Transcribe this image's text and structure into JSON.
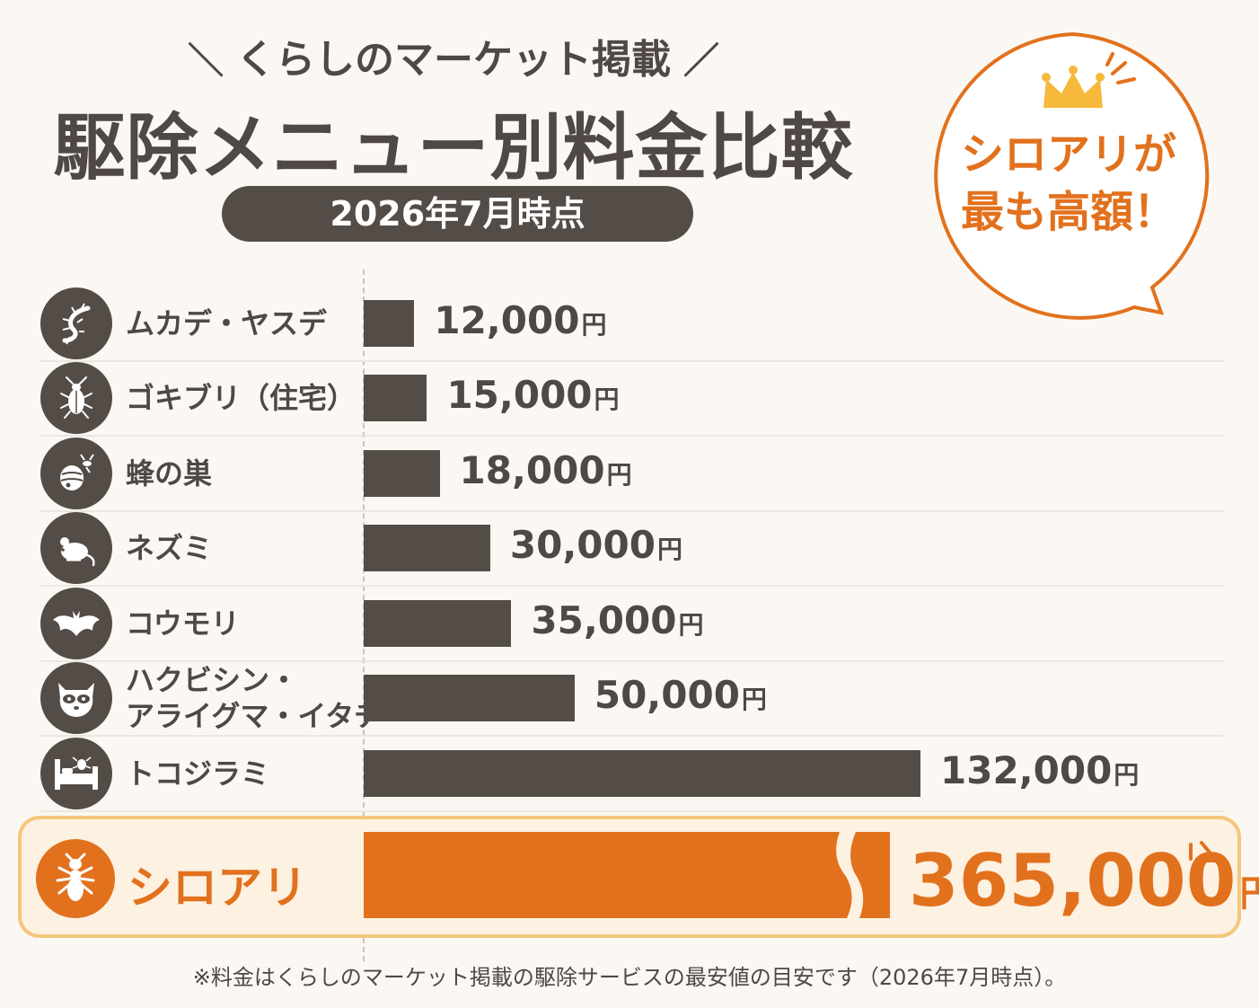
{
  "header": {
    "subtitle": "くらしのマーケット掲載",
    "title": "駆除メニュー別料金比較",
    "date": "2026年7月時点"
  },
  "callout": {
    "line1": "シロアリが",
    "line2": "最も高額！",
    "icon": "crown-icon"
  },
  "colors": {
    "bar": "#544c47",
    "highlight": "#e2711d",
    "highlight_bg": "#fdf1e2",
    "highlight_border": "#f3c77b",
    "crown": "#f6b93b"
  },
  "chart_data": {
    "type": "bar",
    "orientation": "horizontal",
    "categories": [
      "ムカデ・ヤスデ",
      "ゴキブリ（住宅）",
      "蜂の巣",
      "ネズミ",
      "コウモリ",
      "ハクビシン・アライグマ・イタチ",
      "トコジラミ",
      "シロアリ"
    ],
    "category_lines": [
      [
        "ムカデ・ヤスデ"
      ],
      [
        "ゴキブリ（住宅）"
      ],
      [
        "蜂の巣"
      ],
      [
        "ネズミ"
      ],
      [
        "コウモリ"
      ],
      [
        "ハクビシン・",
        "アライグマ・イタチ"
      ],
      [
        "トコジラミ"
      ],
      [
        "シロアリ"
      ]
    ],
    "values": [
      12000,
      15000,
      18000,
      30000,
      35000,
      50000,
      132000,
      365000
    ],
    "value_labels": [
      "12,000",
      "15,000",
      "18,000",
      "30,000",
      "35,000",
      "50,000",
      "132,000",
      "365,000"
    ],
    "unit": "円",
    "icons": [
      "centipede-icon",
      "cockroach-icon",
      "hornet-nest-icon",
      "mouse-icon",
      "bat-icon",
      "raccoon-icon",
      "bedbug-icon",
      "termite-icon"
    ],
    "highlight_index": 7,
    "broken_axis_index": 7,
    "xlim": [
      0,
      132000
    ]
  },
  "footnote": "※料金はくらしのマーケット掲載の駆除サービスの最安値の目安です（2026年7月時点）。"
}
